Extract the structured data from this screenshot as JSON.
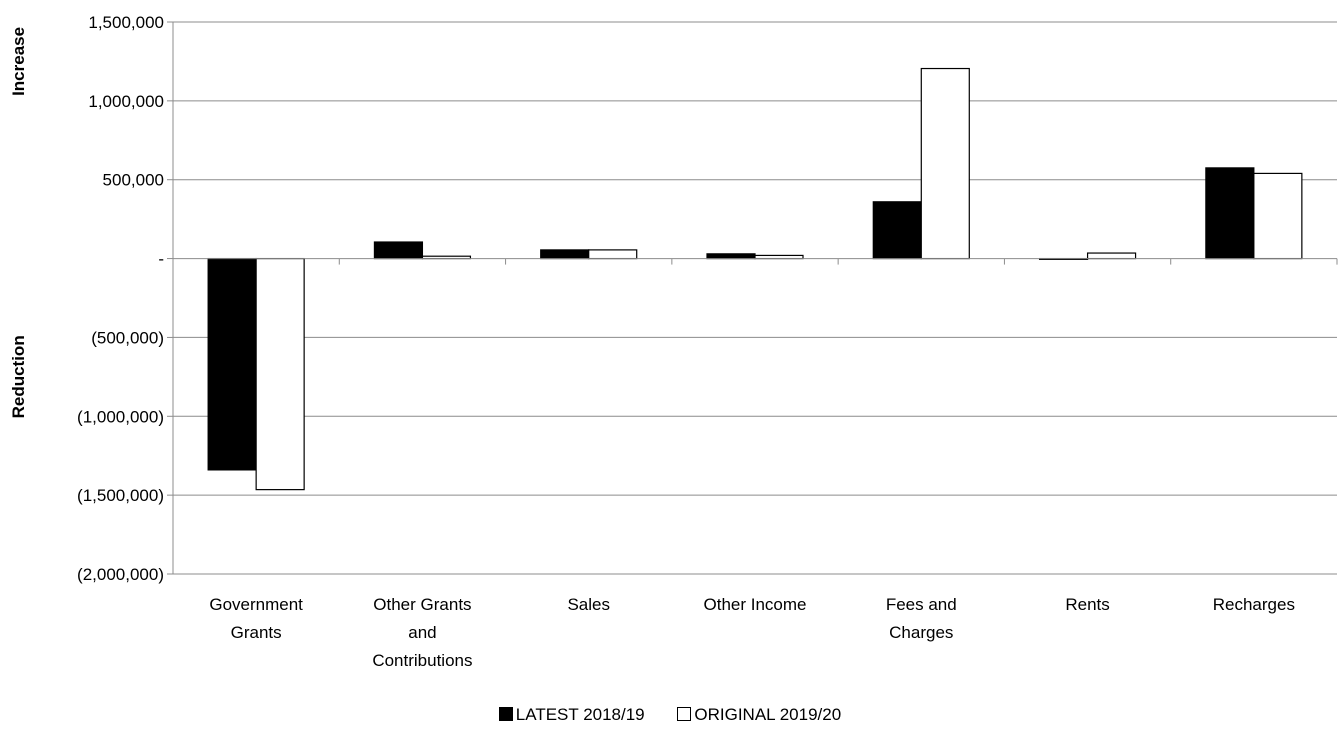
{
  "chart_data": {
    "type": "bar",
    "categories": [
      [
        "Government",
        "Grants"
      ],
      [
        "Other Grants",
        "and",
        "Contributions"
      ],
      [
        "Sales"
      ],
      [
        "Other Income"
      ],
      [
        "Fees and",
        "Charges"
      ],
      [
        "Rents"
      ],
      [
        "Recharges"
      ]
    ],
    "series": [
      {
        "name": "LATEST 2018/19",
        "color": "#000000",
        "values": [
          -1340000,
          105000,
          55000,
          30000,
          360000,
          0,
          575000
        ]
      },
      {
        "name": "ORIGINAL 2019/20",
        "color": "#ffffff",
        "values": [
          -1465000,
          15000,
          55000,
          20000,
          1205000,
          35000,
          540000
        ]
      }
    ],
    "ylim": [
      -2000000,
      1500000
    ],
    "yticks": [
      1500000,
      1000000,
      500000,
      0,
      -500000,
      -1000000,
      -1500000,
      -2000000
    ],
    "ytick_labels": [
      "1,500,000",
      "1,000,000",
      "500,000",
      "-",
      "(500,000)",
      "(1,000,000)",
      "(1,500,000)",
      "(2,000,000)"
    ],
    "ylabel_positive": "Increase",
    "ylabel_negative": "Reduction",
    "grid": true,
    "legend_position": "bottom-center"
  },
  "legend": {
    "items": [
      {
        "label": "LATEST 2018/19",
        "color": "#000000"
      },
      {
        "label": "ORIGINAL 2019/20",
        "color": "#ffffff"
      }
    ]
  }
}
